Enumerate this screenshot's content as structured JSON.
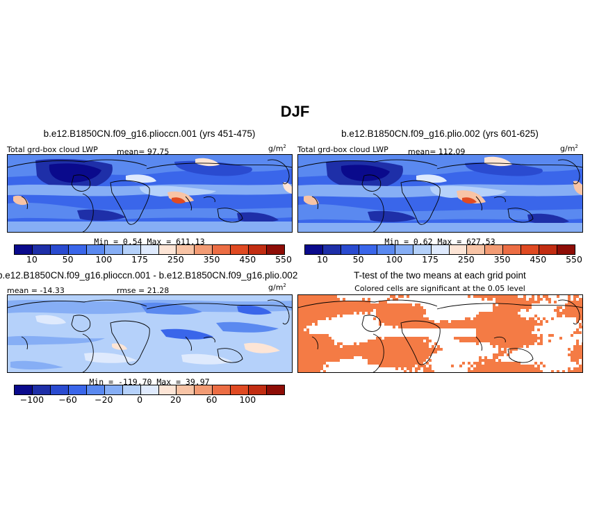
{
  "figure_title": "DJF",
  "panels": [
    {
      "title": "b.e12.B1850CN.f09_g16.plioccn.001 (yrs 451-475)",
      "field_label": "Total grd-box cloud LWP",
      "mean_text": "mean=  97.75",
      "units_base": "g/m",
      "units_exp": "2",
      "minmax_text": "Min =   0.54  Max =  611.13"
    },
    {
      "title": "b.e12.B1850CN.f09_g16.plio.002 (yrs 601-625)",
      "field_label": "Total grd-box cloud LWP",
      "mean_text": "mean= 112.09",
      "units_base": "g/m",
      "units_exp": "2",
      "minmax_text": "Min =   0.62  Max =  627.53"
    },
    {
      "title": "b.e12.B1850CN.f09_g16.plioccn.001 - b.e12.B1850CN.f09_g16.plio.002",
      "mean_text": "mean = -14.33",
      "rmse_text": "rmse =  21.28",
      "units_base": "g/m",
      "units_exp": "2",
      "minmax_text": "Min = -119.70  Max =  39.97"
    },
    {
      "title": "T-test of the two means at each grid point",
      "subtitle": "Colored cells are significant at the 0.05 level"
    }
  ],
  "colorbar_field": {
    "colors": [
      "#0a0a8c",
      "#1e2fa8",
      "#2a4bd0",
      "#3a66ea",
      "#5a89f0",
      "#86aef5",
      "#b5d1fa",
      "#dfeafd",
      "#fde5d6",
      "#f8c4a6",
      "#f29b74",
      "#ec6d44",
      "#e04a22",
      "#c22d12",
      "#8e0d06"
    ],
    "ticks": [
      "10",
      "50",
      "100",
      "175",
      "250",
      "350",
      "450",
      "550"
    ]
  },
  "colorbar_diff": {
    "colors": [
      "#0a0a8c",
      "#1e2fa8",
      "#2a4bd0",
      "#3a66ea",
      "#5a89f0",
      "#86aef5",
      "#b5d1fa",
      "#dfeafd",
      "#fde5d6",
      "#f8c4a6",
      "#f29b74",
      "#ec6d44",
      "#e04a22",
      "#c22d12",
      "#8e0d06"
    ],
    "ticks": [
      "−100",
      "−60",
      "−20",
      "0",
      "20",
      "60",
      "100"
    ]
  },
  "significance_color": "#f47b45"
}
